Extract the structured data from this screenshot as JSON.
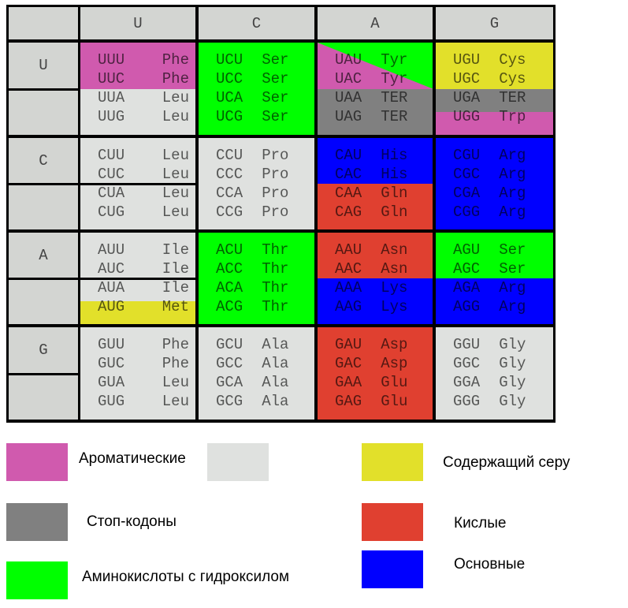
{
  "colors": {
    "aromatic": "#d05aae",
    "other": "#dfe1df",
    "sulfur": "#e2e02a",
    "stop": "#808080",
    "acidic": "#e04030",
    "hydroxyl": "#00ff00",
    "basic": "#0000ff",
    "header": "#d3d5d2"
  },
  "columns": [
    "U",
    "C",
    "A",
    "G"
  ],
  "rows": [
    {
      "label": "U",
      "cells": [
        [
          {
            "codon": "UUU",
            "aa": "Phe",
            "cls": "aromatic"
          },
          {
            "codon": "UUC",
            "aa": "Phe",
            "cls": "aromatic"
          },
          {
            "codon": "UUA",
            "aa": "Leu",
            "cls": "other"
          },
          {
            "codon": "UUG",
            "aa": "Leu",
            "cls": "other"
          }
        ],
        [
          {
            "codon": "UCU",
            "aa": "Ser",
            "cls": "hydroxyl"
          },
          {
            "codon": "UCC",
            "aa": "Ser",
            "cls": "hydroxyl"
          },
          {
            "codon": "UCA",
            "aa": "Ser",
            "cls": "hydroxyl"
          },
          {
            "codon": "UCG",
            "aa": "Ser",
            "cls": "hydroxyl"
          }
        ],
        [
          {
            "codon": "UAU",
            "aa": "Tyr",
            "cls": "aromatic+hydroxyl"
          },
          {
            "codon": "UAC",
            "aa": "Tyr",
            "cls": "aromatic+hydroxyl"
          },
          {
            "codon": "UAA",
            "aa": "TER",
            "cls": "stop"
          },
          {
            "codon": "UAG",
            "aa": "TER",
            "cls": "stop"
          }
        ],
        [
          {
            "codon": "UGU",
            "aa": "Cys",
            "cls": "sulfur"
          },
          {
            "codon": "UGC",
            "aa": "Cys",
            "cls": "sulfur"
          },
          {
            "codon": "UGA",
            "aa": "TER",
            "cls": "stop"
          },
          {
            "codon": "UGG",
            "aa": "Trp",
            "cls": "aromatic"
          }
        ]
      ]
    },
    {
      "label": "C",
      "cells": [
        [
          {
            "codon": "CUU",
            "aa": "Leu",
            "cls": "other"
          },
          {
            "codon": "CUC",
            "aa": "Leu",
            "cls": "other"
          },
          {
            "codon": "CUA",
            "aa": "Leu",
            "cls": "other"
          },
          {
            "codon": "CUG",
            "aa": "Leu",
            "cls": "other"
          }
        ],
        [
          {
            "codon": "CCU",
            "aa": "Pro",
            "cls": "other"
          },
          {
            "codon": "CCC",
            "aa": "Pro",
            "cls": "other"
          },
          {
            "codon": "CCA",
            "aa": "Pro",
            "cls": "other"
          },
          {
            "codon": "CCG",
            "aa": "Pro",
            "cls": "other"
          }
        ],
        [
          {
            "codon": "CAU",
            "aa": "His",
            "cls": "basic"
          },
          {
            "codon": "CAC",
            "aa": "His",
            "cls": "basic"
          },
          {
            "codon": "CAA",
            "aa": "Gln",
            "cls": "acidic"
          },
          {
            "codon": "CAG",
            "aa": "Gln",
            "cls": "acidic"
          }
        ],
        [
          {
            "codon": "CGU",
            "aa": "Arg",
            "cls": "basic"
          },
          {
            "codon": "CGC",
            "aa": "Arg",
            "cls": "basic"
          },
          {
            "codon": "CGA",
            "aa": "Arg",
            "cls": "basic"
          },
          {
            "codon": "CGG",
            "aa": "Arg",
            "cls": "basic"
          }
        ]
      ]
    },
    {
      "label": "A",
      "cells": [
        [
          {
            "codon": "AUU",
            "aa": "Ile",
            "cls": "other"
          },
          {
            "codon": "AUC",
            "aa": "Ile",
            "cls": "other"
          },
          {
            "codon": "AUA",
            "aa": "Ile",
            "cls": "other"
          },
          {
            "codon": "AUG",
            "aa": "Met",
            "cls": "sulfur"
          }
        ],
        [
          {
            "codon": "ACU",
            "aa": "Thr",
            "cls": "hydroxyl"
          },
          {
            "codon": "ACC",
            "aa": "Thr",
            "cls": "hydroxyl"
          },
          {
            "codon": "ACA",
            "aa": "Thr",
            "cls": "hydroxyl"
          },
          {
            "codon": "ACG",
            "aa": "Thr",
            "cls": "hydroxyl"
          }
        ],
        [
          {
            "codon": "AAU",
            "aa": "Asn",
            "cls": "acidic"
          },
          {
            "codon": "AAC",
            "aa": "Asn",
            "cls": "acidic"
          },
          {
            "codon": "AAA",
            "aa": "Lys",
            "cls": "basic"
          },
          {
            "codon": "AAG",
            "aa": "Lys",
            "cls": "basic"
          }
        ],
        [
          {
            "codon": "AGU",
            "aa": "Ser",
            "cls": "hydroxyl"
          },
          {
            "codon": "AGC",
            "aa": "Ser",
            "cls": "hydroxyl"
          },
          {
            "codon": "AGA",
            "aa": "Arg",
            "cls": "basic"
          },
          {
            "codon": "AGG",
            "aa": "Arg",
            "cls": "basic"
          }
        ]
      ]
    },
    {
      "label": "G",
      "cells": [
        [
          {
            "codon": "GUU",
            "aa": "Phe",
            "cls": "other"
          },
          {
            "codon": "GUC",
            "aa": "Phe",
            "cls": "other"
          },
          {
            "codon": "GUA",
            "aa": "Leu",
            "cls": "other"
          },
          {
            "codon": "GUG",
            "aa": "Leu",
            "cls": "other"
          }
        ],
        [
          {
            "codon": "GCU",
            "aa": "Ala",
            "cls": "other"
          },
          {
            "codon": "GCC",
            "aa": "Ala",
            "cls": "other"
          },
          {
            "codon": "GCA",
            "aa": "Ala",
            "cls": "other"
          },
          {
            "codon": "GCG",
            "aa": "Ala",
            "cls": "other"
          }
        ],
        [
          {
            "codon": "GAU",
            "aa": "Asp",
            "cls": "acidic"
          },
          {
            "codon": "GAC",
            "aa": "Asp",
            "cls": "acidic"
          },
          {
            "codon": "GAA",
            "aa": "Glu",
            "cls": "acidic"
          },
          {
            "codon": "GAG",
            "aa": "Glu",
            "cls": "acidic"
          }
        ],
        [
          {
            "codon": "GGU",
            "aa": "Gly",
            "cls": "other"
          },
          {
            "codon": "GGC",
            "aa": "Gly",
            "cls": "other"
          },
          {
            "codon": "GGA",
            "aa": "Gly",
            "cls": "other"
          },
          {
            "codon": "GGG",
            "aa": "Gly",
            "cls": "other"
          }
        ]
      ]
    }
  ],
  "legend": [
    {
      "cls": "aromatic",
      "label": "Ароматические"
    },
    {
      "cls": "other",
      "label": ""
    },
    {
      "cls": "sulfur",
      "label": "Содержащий серу"
    },
    {
      "cls": "stop",
      "label": "Стоп-кодоны"
    },
    {
      "cls": "acidic",
      "label": "Кислые"
    },
    {
      "cls": "hydroxyl",
      "label": "Аминокислоты с гидроксилом"
    },
    {
      "cls": "basic",
      "label": "Основные"
    }
  ]
}
